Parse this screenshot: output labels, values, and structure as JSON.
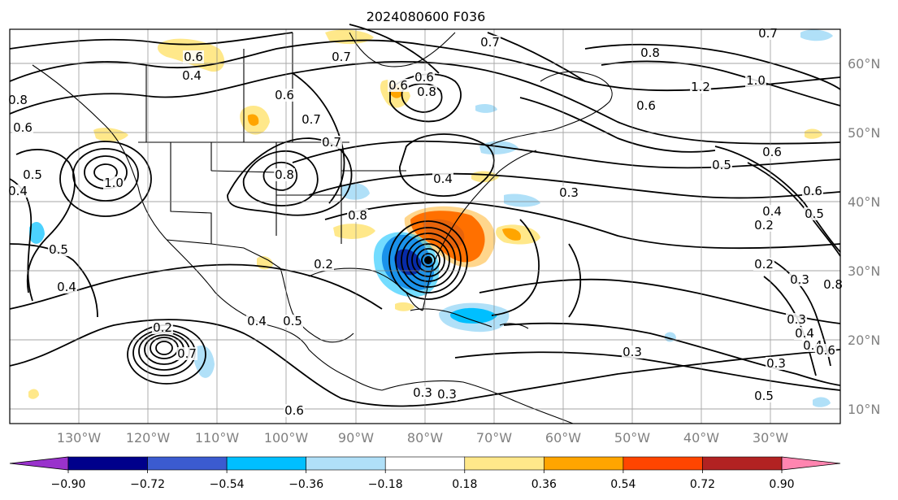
{
  "title": "2024080600 F036",
  "map": {
    "lon_labels": [
      "130°W",
      "120°W",
      "110°W",
      "100°W",
      "90°W",
      "80°W",
      "70°W",
      "60°W",
      "50°W",
      "40°W",
      "30°W"
    ],
    "lat_labels": [
      "60°N",
      "50°N",
      "40°N",
      "30°N",
      "20°N",
      "10°N"
    ],
    "gridlines": true,
    "contour_labels": [
      "0.8",
      "0.6",
      "0.5",
      "0.4",
      "1.0",
      "0.6",
      "0.7",
      "0.6",
      "0.8",
      "0.4",
      "0.6",
      "0.7",
      "0.8",
      "0.2",
      "0.4",
      "0.5",
      "0.7",
      "0.4",
      "0.5",
      "0.7",
      "0.6",
      "1.2",
      "1.0",
      "0.8",
      "0.8",
      "0.6",
      "0.5",
      "0.2",
      "0.3",
      "0.3",
      "0.3",
      "0.5",
      "0.6",
      "0.4",
      "0.3",
      "0.2",
      "0.3",
      "0.2",
      "0.3",
      "0.4",
      "0.4",
      "0.6",
      "0.6",
      "0.7",
      "0.8",
      "0.4",
      "0.3",
      "0.5",
      "0.6",
      "0.7"
    ]
  },
  "colorbar": {
    "tick_labels": [
      "−0.90",
      "−0.72",
      "−0.54",
      "−0.36",
      "−0.18",
      "0.18",
      "0.36",
      "0.54",
      "0.72",
      "0.90"
    ],
    "colors": [
      "#9932cc",
      "#00008b",
      "#3b5bd0",
      "#00bfff",
      "#b0e0f8",
      "#ffffff",
      "#ffe88a",
      "#ffa500",
      "#ff4500",
      "#b22222",
      "#ff85b0"
    ]
  }
}
